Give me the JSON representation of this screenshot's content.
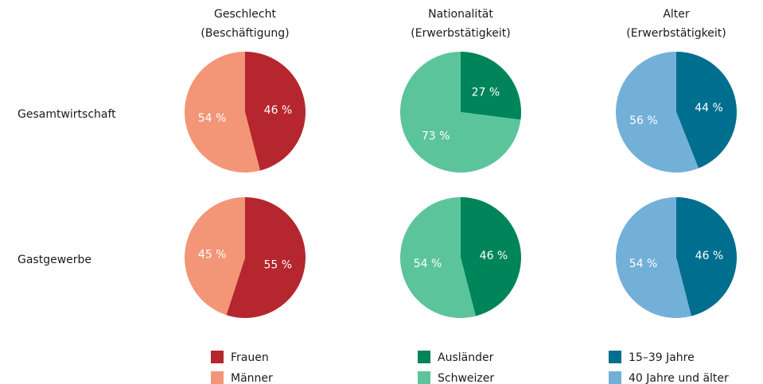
{
  "chart_data": [
    {
      "type": "pie",
      "title": [
        "Geschlecht",
        "(Beschäftigung)"
      ],
      "categories": [
        "Frauen",
        "Männer"
      ],
      "colors": [
        "#b5262e",
        "#f39677"
      ],
      "series": [
        {
          "name": "Gesamtwirtschaft",
          "values": [
            46,
            54
          ],
          "value_labels": [
            "46 %",
            "54 %"
          ]
        },
        {
          "name": "Gastgewerbe",
          "values": [
            55,
            45
          ],
          "value_labels": [
            "55 %",
            "45 %"
          ]
        }
      ]
    },
    {
      "type": "pie",
      "title": [
        "Nationalität",
        "(Erwerbstätigkeit)"
      ],
      "categories": [
        "Ausländer",
        "Schweizer"
      ],
      "colors": [
        "#00845a",
        "#5cc49b"
      ],
      "series": [
        {
          "name": "Gesamtwirtschaft",
          "values": [
            27,
            73
          ],
          "value_labels": [
            "27 %",
            "73 %"
          ]
        },
        {
          "name": "Gastgewerbe",
          "values": [
            46,
            54
          ],
          "value_labels": [
            "46 %",
            "54 %"
          ]
        }
      ]
    },
    {
      "type": "pie",
      "title": [
        "Alter",
        "(Erwerbstätigkeit)"
      ],
      "categories": [
        "15–39 Jahre",
        "40 Jahre und älter"
      ],
      "colors": [
        "#006e8f",
        "#73b0d8"
      ],
      "series": [
        {
          "name": "Gesamtwirtschaft",
          "values": [
            44,
            56
          ],
          "value_labels": [
            "44 %",
            "56 %"
          ]
        },
        {
          "name": "Gastgewerbe",
          "values": [
            46,
            54
          ],
          "value_labels": [
            "46 %",
            "54 %"
          ]
        }
      ]
    }
  ]
}
